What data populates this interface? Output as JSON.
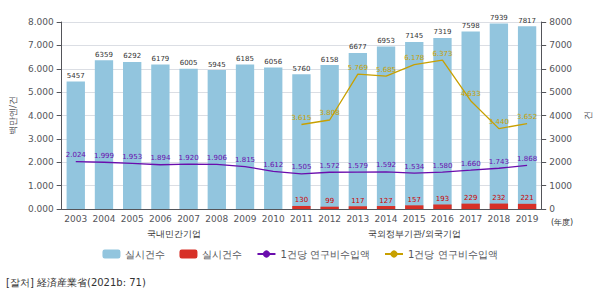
{
  "chart_data": {
    "type": "bar",
    "categories": [
      "2003",
      "2004",
      "2005",
      "2006",
      "2007",
      "2008",
      "2009",
      "2010",
      "2011",
      "2012",
      "2013",
      "2014",
      "2015",
      "2016",
      "2017",
      "2018",
      "2019"
    ],
    "series": [
      {
        "name": "실시건수",
        "type": "bar",
        "color": "#92c5de",
        "axis": "y2",
        "values": [
          5457,
          6359,
          6292,
          6179,
          6005,
          5945,
          6185,
          6056,
          5760,
          6158,
          6677,
          6953,
          7145,
          7319,
          7598,
          7939,
          7817
        ]
      },
      {
        "name": "실시건수",
        "type": "bar",
        "color": "#d73027",
        "axis": "y2",
        "values": [
          0,
          0,
          0,
          0,
          0,
          0,
          0,
          0,
          130,
          99,
          117,
          127,
          157,
          193,
          229,
          232,
          221
        ],
        "value_labels": [
          null,
          null,
          null,
          null,
          null,
          null,
          null,
          null,
          "130",
          "99",
          "117",
          "127",
          "157",
          "193",
          "229",
          "232",
          "221"
        ]
      },
      {
        "name": "1건당 연구비수입액",
        "type": "line",
        "color": "#6a0dad",
        "values": [
          2.024,
          1.999,
          1.953,
          1.894,
          1.92,
          1.906,
          1.815,
          1.612,
          1.505,
          1.572,
          1.579,
          1.592,
          1.534,
          1.58,
          1.66,
          1.743,
          1.868
        ],
        "value_labels": [
          "2.024",
          "1.999",
          "1.953",
          "1.894",
          "1.920",
          "1.906",
          "1.815",
          "1.612",
          "1.505",
          "1.572",
          "1.579",
          "1.592",
          "1.534",
          "1.580",
          "1.660",
          "1.743",
          "1.868"
        ]
      },
      {
        "name": "1건당 연구비수입액",
        "type": "line",
        "color": "#c8a000",
        "values": [
          null,
          null,
          null,
          null,
          null,
          null,
          null,
          null,
          3.615,
          3.808,
          5.769,
          5.685,
          6.178,
          6.373,
          4.633,
          3.44,
          3.652
        ],
        "value_labels": [
          null,
          null,
          null,
          null,
          null,
          null,
          null,
          null,
          "3.615",
          "3.808",
          "5.769",
          "5.685",
          "6.178",
          "6.373",
          "4.633",
          "3.440",
          "3.652"
        ]
      }
    ],
    "ylabel": "백만엔/건",
    "y2label": "건",
    "ylim": [
      0,
      8.0
    ],
    "yticks": [
      {
        "value": 0,
        "label": "0.000"
      },
      {
        "value": 1,
        "label": "1.000"
      },
      {
        "value": 2,
        "label": "2.000"
      },
      {
        "value": 3,
        "label": "3.000"
      },
      {
        "value": 4,
        "label": "4.000"
      },
      {
        "value": 5,
        "label": "5.000"
      },
      {
        "value": 6,
        "label": "6.000"
      },
      {
        "value": 7,
        "label": "7.000"
      },
      {
        "value": 8,
        "label": "8.000"
      }
    ],
    "y2lim": [
      0,
      8000
    ],
    "y2ticks": [
      0,
      1000,
      2000,
      3000,
      4000,
      5000,
      6000,
      7000,
      8000
    ],
    "grid": true,
    "legend": "bottom",
    "data_labels": true,
    "group_labels": [
      "국내민간기업",
      "국외정부기관/외국기업"
    ],
    "note": "(年度)",
    "source": "[잘처] 経済産業省(2021b: 71)"
  }
}
